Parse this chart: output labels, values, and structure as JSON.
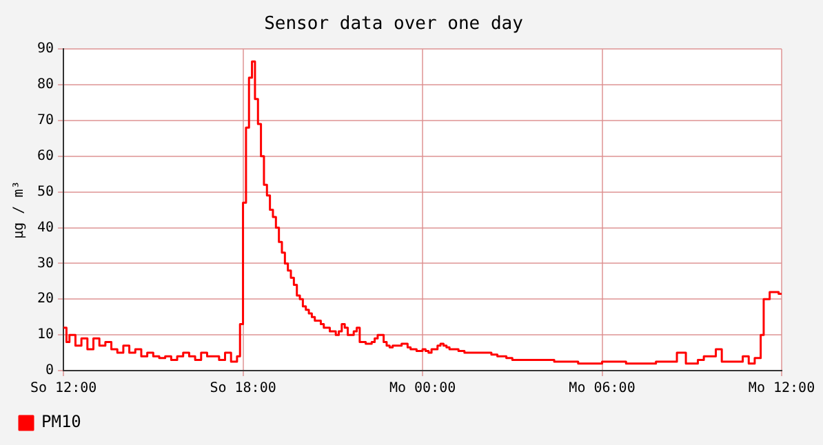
{
  "chart_data": {
    "type": "step",
    "title": "Sensor data over one day",
    "ylabel": "µg / m³",
    "categories": [
      "So 12:00",
      null,
      null,
      null,
      null,
      null,
      null,
      null,
      null,
      null,
      null,
      null,
      null,
      null,
      null,
      null,
      null,
      null,
      null,
      null,
      null,
      null,
      null,
      null,
      null,
      null,
      null,
      null,
      null,
      null,
      null,
      null,
      null,
      null,
      null,
      null,
      null,
      null,
      null,
      null,
      null,
      null,
      null,
      null,
      null,
      null,
      null,
      null,
      null,
      null,
      null,
      null,
      null,
      null,
      null,
      null,
      null,
      null,
      null,
      null,
      "So 18:00",
      null,
      null,
      null,
      null,
      null,
      null,
      null,
      null,
      null,
      null,
      null,
      null,
      null,
      null,
      null,
      null,
      null,
      null,
      null,
      null,
      null,
      null,
      null,
      null,
      null,
      null,
      null,
      null,
      null,
      null,
      null,
      null,
      null,
      null,
      null,
      null,
      null,
      null,
      null,
      null,
      null,
      null,
      null,
      null,
      null,
      null,
      null,
      null,
      null,
      null,
      null,
      null,
      null,
      null,
      null,
      null,
      null,
      null,
      null,
      "Mo 00:00",
      null,
      null,
      null,
      null,
      null,
      null,
      null,
      null,
      null,
      null,
      null,
      null,
      null,
      null,
      null,
      null,
      null,
      null,
      null,
      null,
      null,
      null,
      null,
      null,
      null,
      null,
      null,
      null,
      null,
      null,
      null,
      null,
      null,
      null,
      null,
      null,
      null,
      null,
      null,
      null,
      null,
      null,
      null,
      null,
      null,
      null,
      null,
      null,
      null,
      null,
      null,
      null,
      null,
      null,
      null,
      null,
      null,
      null,
      null,
      "Mo 06:00",
      null,
      null,
      null,
      null,
      null,
      null,
      null,
      null,
      null,
      null,
      null,
      null,
      null,
      null,
      null,
      null,
      null,
      null,
      null,
      null,
      null,
      null,
      null,
      null,
      null,
      null,
      null,
      null,
      null,
      null,
      null,
      null,
      null,
      null,
      null,
      null,
      null,
      null,
      null,
      null,
      null,
      null,
      null,
      null,
      null,
      null,
      null,
      null,
      null,
      null,
      null,
      null,
      null,
      null,
      null,
      null,
      null,
      null,
      null,
      "Mo 12:00"
    ],
    "ylim": [
      0,
      90
    ],
    "yticks": [
      0,
      10,
      20,
      30,
      40,
      50,
      60,
      70,
      80,
      90
    ],
    "grid": true,
    "legend": "bottom left",
    "marker": "none",
    "line_style": "solid",
    "series": [
      {
        "name": "PM10",
        "color": "#ff0000",
        "values": [
          12,
          8,
          10,
          10,
          7,
          7,
          9,
          9,
          6,
          6,
          9,
          9,
          7,
          7,
          8,
          8,
          6,
          6,
          5,
          5,
          7,
          7,
          5,
          5,
          6,
          6,
          4,
          4,
          5,
          5,
          4,
          4,
          3.5,
          3.5,
          4,
          4,
          3,
          3,
          4,
          4,
          5,
          5,
          4,
          4,
          3,
          3,
          5,
          5,
          4,
          4,
          4,
          4,
          3,
          3,
          5,
          5,
          2.5,
          2.5,
          4,
          13,
          47,
          68,
          82,
          86.5,
          76,
          69,
          60,
          52,
          49,
          45,
          43,
          40,
          36,
          33,
          30,
          28,
          26,
          24,
          21,
          20,
          18,
          17,
          16,
          15,
          14,
          14,
          13,
          12,
          12,
          11,
          11,
          10,
          11,
          13,
          12,
          10,
          10,
          11,
          12,
          8,
          8,
          7.5,
          7.5,
          8,
          9,
          10,
          10,
          8,
          7,
          6.5,
          7,
          7,
          7,
          7.5,
          7.5,
          6.5,
          6,
          6,
          5.5,
          5.5,
          6,
          5.5,
          5,
          6,
          6,
          7,
          7.5,
          7,
          6.5,
          6,
          6,
          6,
          5.5,
          5.5,
          5,
          5,
          5,
          5,
          5,
          5,
          5,
          5,
          5,
          4.5,
          4.5,
          4,
          4,
          4,
          3.5,
          3.5,
          3,
          3,
          3,
          3,
          3,
          3,
          3,
          3,
          3,
          3,
          3,
          3,
          3,
          3,
          2.5,
          2.5,
          2.5,
          2.5,
          2.5,
          2.5,
          2.5,
          2.5,
          2,
          2,
          2,
          2,
          2,
          2,
          2,
          2,
          2.5,
          2.5,
          2.5,
          2.5,
          2.5,
          2.5,
          2.5,
          2.5,
          2,
          2,
          2,
          2,
          2,
          2,
          2,
          2,
          2,
          2,
          2.5,
          2.5,
          2.5,
          2.5,
          2.5,
          2.5,
          2.5,
          5,
          5,
          5,
          2,
          2,
          2,
          2,
          3,
          3,
          4,
          4,
          4,
          4,
          6,
          6,
          2.5,
          2.5,
          2.5,
          2.5,
          2.5,
          2.5,
          2.5,
          4,
          4,
          2,
          2,
          3.5,
          3.5,
          10,
          20,
          20,
          22,
          22,
          22,
          21.5,
          21.5
        ]
      }
    ]
  }
}
